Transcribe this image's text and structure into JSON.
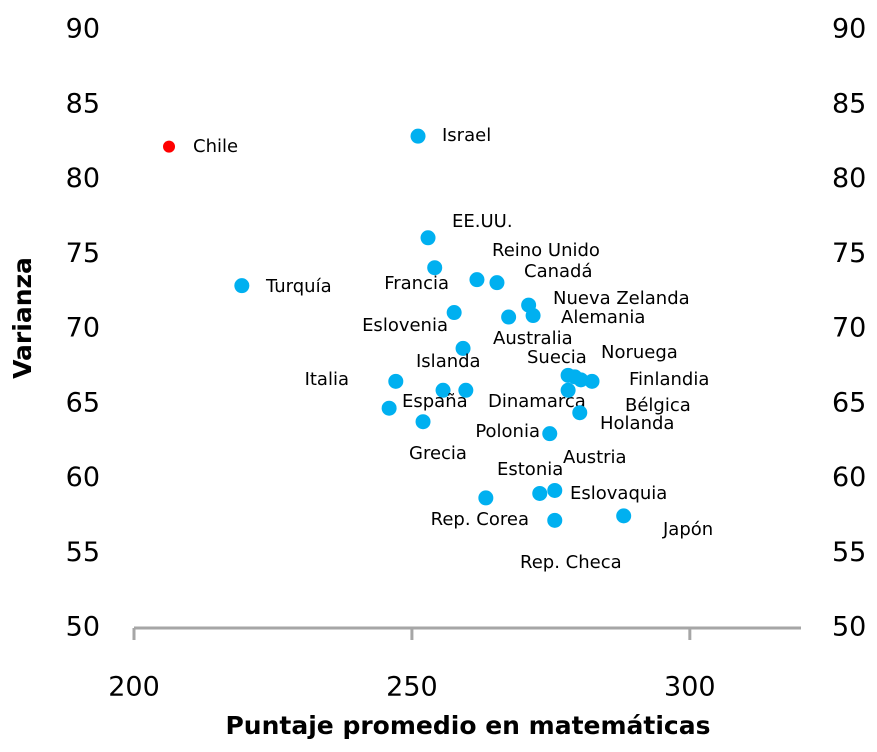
{
  "chart_data": {
    "type": "scatter",
    "x_label": "Puntaje promedio en matemáticas",
    "y_label": "Varianza",
    "xlim": [
      200,
      320
    ],
    "xticks": [
      200,
      250,
      300
    ],
    "ylim": [
      50,
      90
    ],
    "yticks": [
      50,
      55,
      60,
      65,
      70,
      75,
      80,
      85,
      90
    ],
    "y2lim": [
      50,
      90
    ],
    "y2ticks": [
      50,
      55,
      60,
      65,
      70,
      75,
      80,
      85,
      90
    ],
    "grid": false,
    "series": [
      {
        "names": [
          "Chile",
          "Israel",
          "EE.UU.",
          "Francia",
          "Turquía",
          "Reino Unido",
          "Canadá",
          "Nueva Zelanda",
          "Alemania",
          "Eslovenia",
          "Australia",
          "Islanda",
          "Suecia",
          "Noruega",
          "Finlandia",
          "Holanda",
          "Italia",
          "España",
          "Dinamarca",
          "Austria",
          "Bélgica",
          null,
          "Grecia",
          "Polonia",
          "Estonia",
          "Eslovaquia",
          "Rep. Corea",
          "Rep. Checa",
          "Japón"
        ],
        "x": [
          206.3,
          251.1,
          252.9,
          254.1,
          219.4,
          261.7,
          265.3,
          271.0,
          271.8,
          257.6,
          267.4,
          259.2,
          278.1,
          279.3,
          282.4,
          280.4,
          247.1,
          255.6,
          259.7,
          278.1,
          280.2,
          245.9,
          252.0,
          274.8,
          273.0,
          275.7,
          263.3,
          275.7,
          288.1
        ],
        "values": [
          82.2,
          82.9,
          76.1,
          74.1,
          72.9,
          73.3,
          73.1,
          71.6,
          70.9,
          71.1,
          70.8,
          68.7,
          66.9,
          66.8,
          66.5,
          66.6,
          66.5,
          65.9,
          65.9,
          65.9,
          64.4,
          64.7,
          63.8,
          63.0,
          59.0,
          59.2,
          58.7,
          57.2,
          57.5
        ],
        "colors": [
          "#ff0000",
          "#00b0f0",
          "#00b0f0",
          "#00b0f0",
          "#00b0f0",
          "#00b0f0",
          "#00b0f0",
          "#00b0f0",
          "#00b0f0",
          "#00b0f0",
          "#00b0f0",
          "#00b0f0",
          "#00b0f0",
          "#00b0f0",
          "#00b0f0",
          "#00b0f0",
          "#00b0f0",
          "#00b0f0",
          "#00b0f0",
          "#00b0f0",
          "#00b0f0",
          "#00b0f0",
          "#00b0f0",
          "#00b0f0",
          "#00b0f0",
          "#00b0f0",
          "#00b0f0",
          "#00b0f0",
          "#00b0f0"
        ]
      }
    ]
  }
}
